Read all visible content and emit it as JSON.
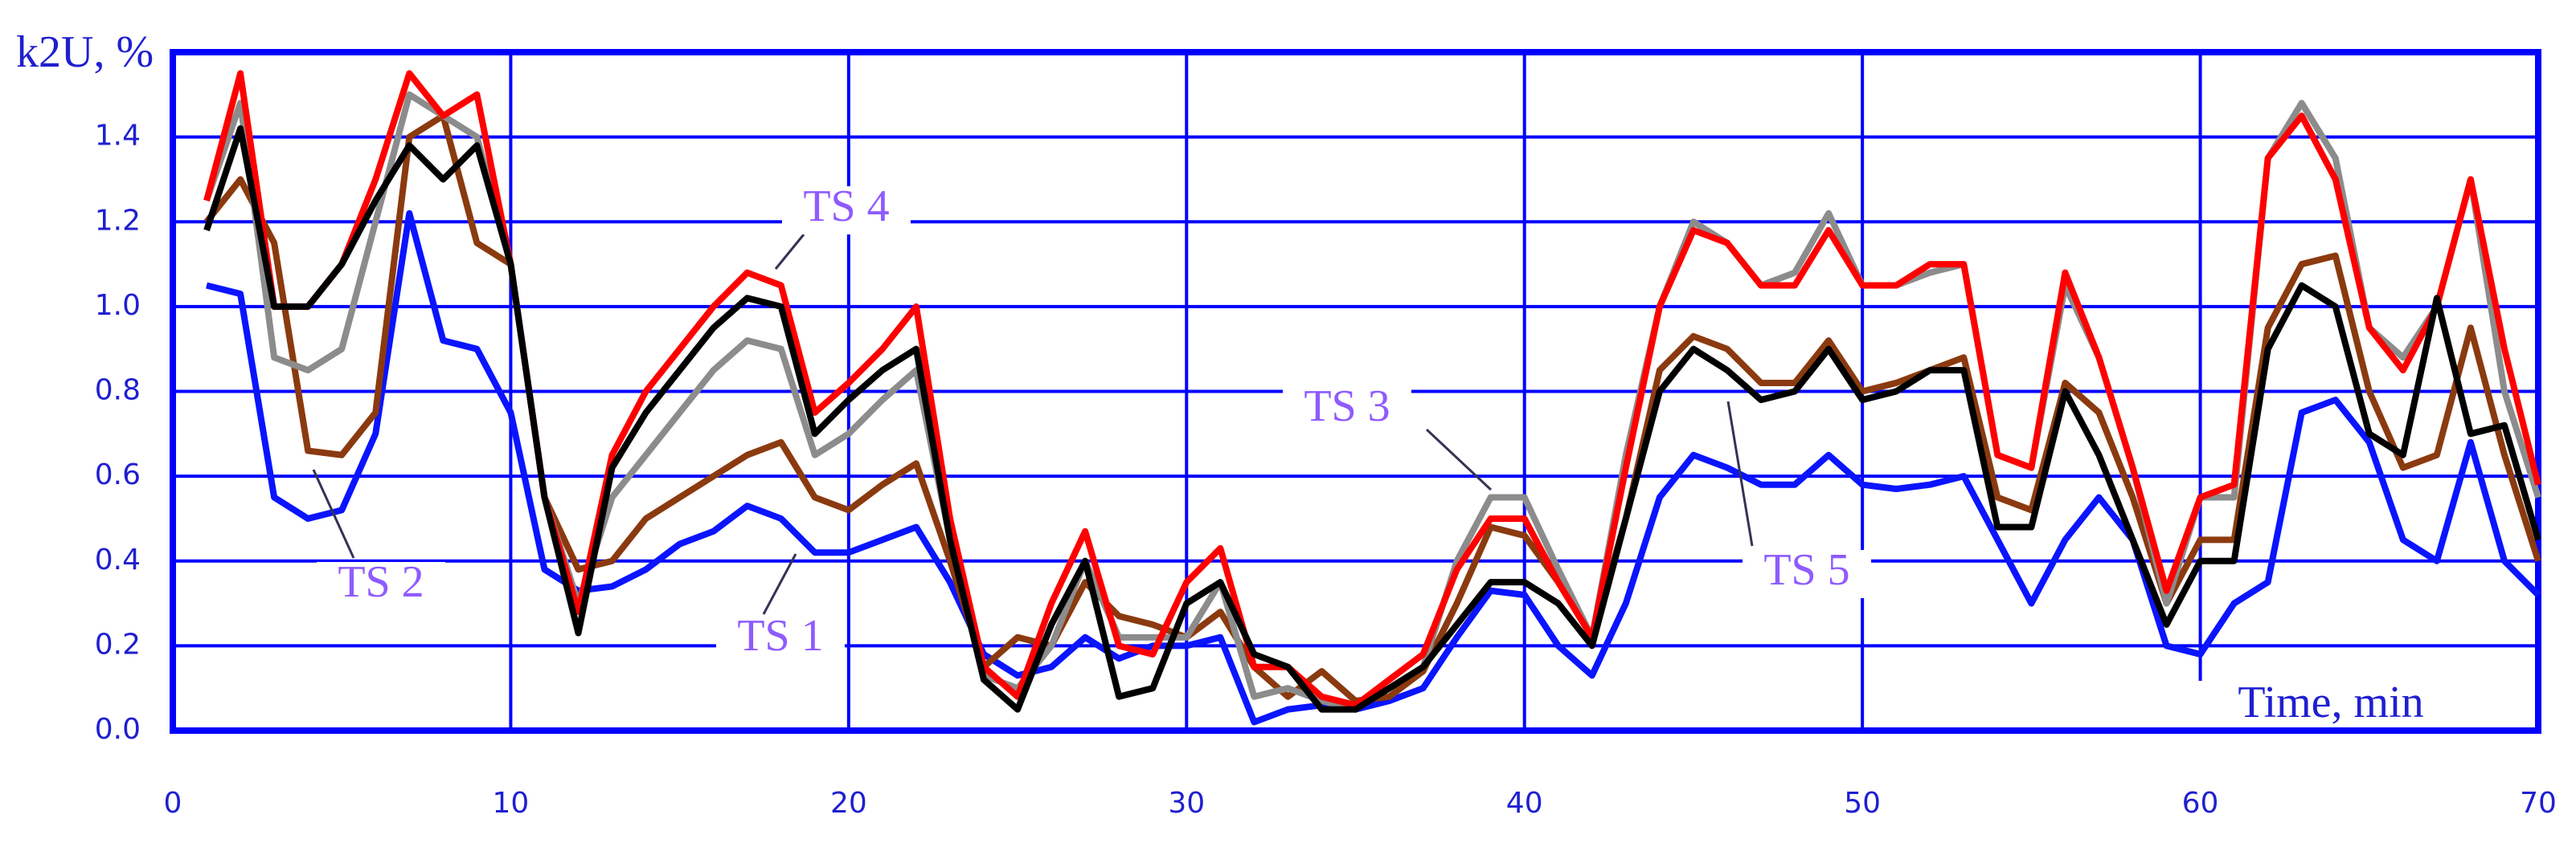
{
  "chart_data": {
    "type": "line",
    "ylabel": "k2U, %",
    "xlabel": "Time, min",
    "x": [
      1,
      2,
      3,
      4,
      5,
      6,
      7,
      8,
      9,
      10,
      11,
      12,
      13,
      14,
      15,
      16,
      17,
      18,
      19,
      20,
      21,
      22,
      23,
      24,
      25,
      26,
      27,
      28,
      29,
      30,
      31,
      32,
      33,
      34,
      35,
      36,
      37,
      38,
      39,
      40,
      41,
      42,
      43,
      44,
      45,
      46,
      47,
      48,
      49,
      50,
      51,
      52,
      53,
      54,
      55,
      56,
      57,
      58,
      59,
      60,
      61,
      62,
      63,
      64,
      65,
      66,
      67,
      68,
      69,
      70
    ],
    "series": [
      {
        "name": "TS 1",
        "color": "#0a14ff",
        "values": [
          1.05,
          1.03,
          0.55,
          0.5,
          0.52,
          0.7,
          1.22,
          0.92,
          0.9,
          0.75,
          0.38,
          0.33,
          0.34,
          0.38,
          0.44,
          0.47,
          0.53,
          0.5,
          0.42,
          0.42,
          0.45,
          0.48,
          0.35,
          0.18,
          0.13,
          0.15,
          0.22,
          0.17,
          0.2,
          0.2,
          0.22,
          0.02,
          0.05,
          0.06,
          0.05,
          0.07,
          0.1,
          0.22,
          0.33,
          0.32,
          0.2,
          0.13,
          0.3,
          0.55,
          0.65,
          0.62,
          0.58,
          0.58,
          0.65,
          0.58,
          0.57,
          0.58,
          0.6,
          0.45,
          0.3,
          0.45,
          0.55,
          0.45,
          0.2,
          0.18,
          0.3,
          0.35,
          0.75,
          0.78,
          0.68,
          0.45,
          0.4,
          0.68,
          0.4,
          0.32
        ]
      },
      {
        "name": "TS 2",
        "color": "#8b3a0f",
        "values": [
          1.2,
          1.3,
          1.15,
          0.66,
          0.65,
          0.75,
          1.4,
          1.45,
          1.15,
          1.1,
          0.55,
          0.38,
          0.4,
          0.5,
          0.55,
          0.6,
          0.65,
          0.68,
          0.55,
          0.52,
          0.58,
          0.63,
          0.4,
          0.15,
          0.22,
          0.2,
          0.35,
          0.27,
          0.25,
          0.22,
          0.28,
          0.15,
          0.08,
          0.14,
          0.07,
          0.08,
          0.14,
          0.3,
          0.48,
          0.46,
          0.35,
          0.22,
          0.5,
          0.85,
          0.93,
          0.9,
          0.82,
          0.82,
          0.92,
          0.8,
          0.82,
          0.85,
          0.88,
          0.55,
          0.52,
          0.82,
          0.75,
          0.55,
          0.3,
          0.45,
          0.45,
          0.95,
          1.1,
          1.12,
          0.8,
          0.62,
          0.65,
          0.95,
          0.65,
          0.4
        ]
      },
      {
        "name": "TS 3",
        "color": "#8c8c8c",
        "values": [
          1.25,
          1.48,
          0.88,
          0.85,
          0.9,
          1.2,
          1.5,
          1.45,
          1.4,
          1.1,
          0.55,
          0.3,
          0.55,
          0.65,
          0.75,
          0.85,
          0.92,
          0.9,
          0.65,
          0.7,
          0.78,
          0.85,
          0.45,
          0.13,
          0.1,
          0.2,
          0.4,
          0.22,
          0.22,
          0.22,
          0.35,
          0.08,
          0.1,
          0.07,
          0.05,
          0.1,
          0.15,
          0.4,
          0.55,
          0.55,
          0.38,
          0.22,
          0.65,
          1.0,
          1.2,
          1.15,
          1.05,
          1.08,
          1.22,
          1.05,
          1.05,
          1.08,
          1.1,
          0.65,
          0.62,
          1.05,
          0.88,
          0.62,
          0.3,
          0.55,
          0.55,
          1.35,
          1.48,
          1.35,
          0.95,
          0.88,
          1.0,
          1.3,
          0.8,
          0.55
        ]
      },
      {
        "name": "TS 4",
        "color": "#ff0000",
        "values": [
          1.25,
          1.55,
          1.0,
          1.0,
          1.1,
          1.3,
          1.55,
          1.45,
          1.5,
          1.1,
          0.55,
          0.28,
          0.65,
          0.8,
          0.9,
          1.0,
          1.08,
          1.05,
          0.75,
          0.82,
          0.9,
          1.0,
          0.5,
          0.15,
          0.08,
          0.3,
          0.47,
          0.2,
          0.18,
          0.35,
          0.43,
          0.15,
          0.15,
          0.08,
          0.06,
          0.12,
          0.18,
          0.38,
          0.5,
          0.5,
          0.35,
          0.22,
          0.62,
          1.0,
          1.18,
          1.15,
          1.05,
          1.05,
          1.18,
          1.05,
          1.05,
          1.1,
          1.1,
          0.65,
          0.62,
          1.08,
          0.88,
          0.62,
          0.33,
          0.55,
          0.58,
          1.35,
          1.45,
          1.3,
          0.95,
          0.85,
          1.0,
          1.3,
          0.9,
          0.58
        ]
      },
      {
        "name": "TS 5",
        "color": "#000000",
        "values": [
          1.18,
          1.42,
          1.0,
          1.0,
          1.1,
          1.25,
          1.38,
          1.3,
          1.38,
          1.1,
          0.55,
          0.23,
          0.62,
          0.75,
          0.85,
          0.95,
          1.02,
          1.0,
          0.7,
          0.78,
          0.85,
          0.9,
          0.45,
          0.12,
          0.05,
          0.25,
          0.4,
          0.08,
          0.1,
          0.3,
          0.35,
          0.18,
          0.15,
          0.05,
          0.05,
          0.1,
          0.15,
          0.25,
          0.35,
          0.35,
          0.3,
          0.2,
          0.5,
          0.8,
          0.9,
          0.85,
          0.78,
          0.8,
          0.9,
          0.78,
          0.8,
          0.85,
          0.85,
          0.48,
          0.48,
          0.8,
          0.65,
          0.45,
          0.25,
          0.4,
          0.4,
          0.9,
          1.05,
          1.0,
          0.7,
          0.65,
          1.02,
          0.7,
          0.72,
          0.45
        ]
      }
    ],
    "xlim": [
      0,
      70
    ],
    "xticks": [
      0,
      10,
      20,
      30,
      40,
      50,
      60,
      70
    ],
    "ylim": [
      0,
      1.6
    ],
    "yticks": [
      {
        "value": 0,
        "label": "0.0"
      },
      0.2,
      0.4,
      0.6,
      0.8,
      {
        "value": 1,
        "label": "1.0"
      },
      1.2,
      1.4
    ],
    "grid": true,
    "grid_color": "#0000ff"
  }
}
